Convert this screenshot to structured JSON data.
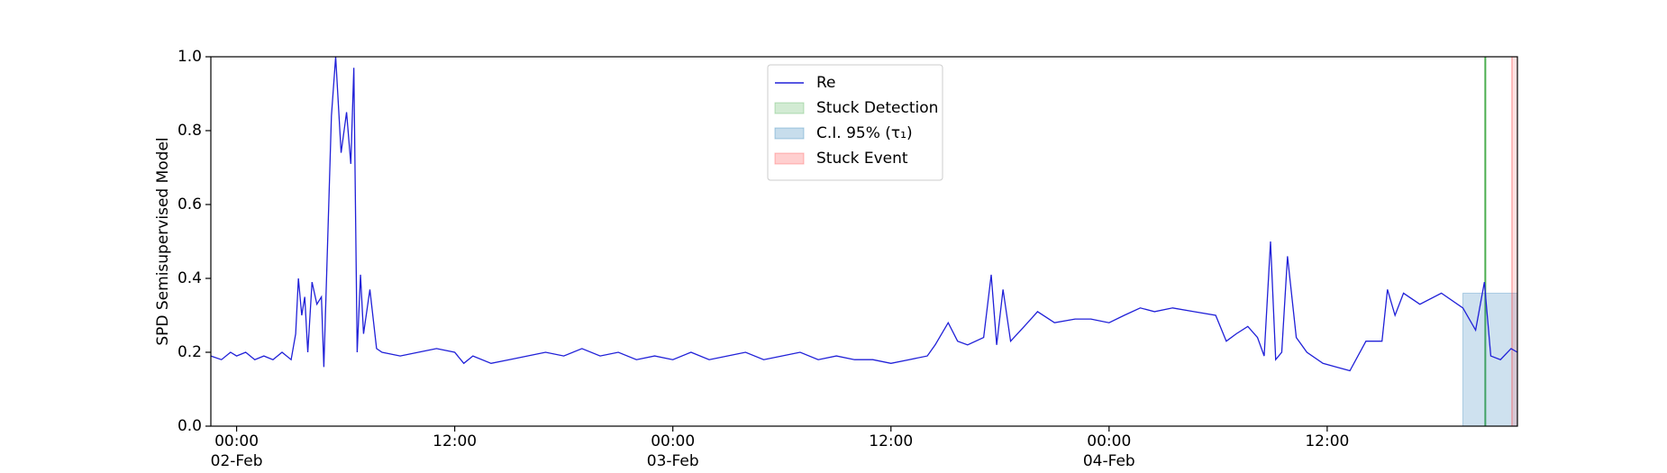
{
  "chart_data": {
    "type": "line",
    "ylabel": "SPD Semisupervised Model",
    "xlim": [
      "1900-02-01 22:35",
      "1900-02-04 22:28"
    ],
    "xticks": [
      {
        "value": "1900-02-02 00:00",
        "label": "00:00\n02-Feb\n1900"
      },
      {
        "value": "1900-02-02 12:00",
        "label": "12:00"
      },
      {
        "value": "1900-02-03 00:00",
        "label": "00:00\n03-Feb"
      },
      {
        "value": "1900-02-03 12:00",
        "label": "12:00"
      },
      {
        "value": "1900-02-04 00:00",
        "label": "00:00\n04-Feb"
      },
      {
        "value": "1900-02-04 12:00",
        "label": "12:00"
      }
    ],
    "ylim": [
      0,
      1
    ],
    "yticks": [
      {
        "value": 0,
        "label": "0.0"
      },
      0.2,
      0.4,
      0.6,
      0.8,
      {
        "value": 1,
        "label": "1.0"
      }
    ],
    "legend": "upper center",
    "series": [
      {
        "name": "Re",
        "color": "#2020d8",
        "x": [
          "1900-02-01 22:35",
          "1900-02-01 23:10",
          "1900-02-01 23:40",
          "1900-02-02 00:00",
          "1900-02-02 00:30",
          "1900-02-02 01:00",
          "1900-02-02 01:30",
          "1900-02-02 02:00",
          "1900-02-02 02:30",
          "1900-02-02 03:00",
          "1900-02-02 03:15",
          "1900-02-02 03:24",
          "1900-02-02 03:35",
          "1900-02-02 03:45",
          "1900-02-02 03:55",
          "1900-02-02 04:09",
          "1900-02-02 04:25",
          "1900-02-02 04:40",
          "1900-02-02 04:48",
          "1900-02-02 05:02",
          "1900-02-02 05:13",
          "1900-02-02 05:27",
          "1900-02-02 05:45",
          "1900-02-02 06:03",
          "1900-02-02 06:17",
          "1900-02-02 06:27",
          "1900-02-02 06:38",
          "1900-02-02 06:49",
          "1900-02-02 06:59",
          "1900-02-02 07:20",
          "1900-02-02 07:42",
          "1900-02-02 08:00",
          "1900-02-02 09:00",
          "1900-02-02 10:00",
          "1900-02-02 11:00",
          "1900-02-02 12:00",
          "1900-02-02 12:30",
          "1900-02-02 13:00",
          "1900-02-02 14:00",
          "1900-02-02 15:00",
          "1900-02-02 16:00",
          "1900-02-02 17:00",
          "1900-02-02 18:00",
          "1900-02-02 19:00",
          "1900-02-02 20:00",
          "1900-02-02 21:00",
          "1900-02-02 22:00",
          "1900-02-02 23:00",
          "1900-02-03 00:00",
          "1900-02-03 01:00",
          "1900-02-03 02:00",
          "1900-02-03 03:00",
          "1900-02-03 04:00",
          "1900-02-03 05:00",
          "1900-02-03 06:00",
          "1900-02-03 07:00",
          "1900-02-03 08:00",
          "1900-02-03 09:00",
          "1900-02-03 10:00",
          "1900-02-03 11:00",
          "1900-02-03 12:00",
          "1900-02-03 13:00",
          "1900-02-03 14:00",
          "1900-02-03 14:26",
          "1900-02-03 15:09",
          "1900-02-03 15:40",
          "1900-02-03 16:13",
          "1900-02-03 17:06",
          "1900-02-03 17:31",
          "1900-02-03 17:49",
          "1900-02-03 18:10",
          "1900-02-03 18:35",
          "1900-02-03 19:20",
          "1900-02-03 20:04",
          "1900-02-03 21:00",
          "1900-02-03 22:08",
          "1900-02-03 23:00",
          "1900-02-04 00:00",
          "1900-02-04 00:50",
          "1900-02-04 01:43",
          "1900-02-04 02:30",
          "1900-02-04 03:30",
          "1900-02-04 04:40",
          "1900-02-04 05:52",
          "1900-02-04 06:27",
          "1900-02-04 07:00",
          "1900-02-04 07:38",
          "1900-02-04 08:10",
          "1900-02-04 08:32",
          "1900-02-04 08:53",
          "1900-02-04 09:10",
          "1900-02-04 09:30",
          "1900-02-04 09:49",
          "1900-02-04 10:18",
          "1900-02-04 10:53",
          "1900-02-04 11:46",
          "1900-02-04 12:30",
          "1900-02-04 13:15",
          "1900-02-04 14:08",
          "1900-02-04 15:01",
          "1900-02-04 15:19",
          "1900-02-04 15:44",
          "1900-02-04 16:12",
          "1900-02-04 17:06",
          "1900-02-04 18:17",
          "1900-02-04 19:28",
          "1900-02-04 20:10",
          "1900-02-04 20:39",
          "1900-02-04 21:00",
          "1900-02-04 21:32",
          "1900-02-04 22:07",
          "1900-02-04 22:28"
        ],
        "values": [
          0.19,
          0.18,
          0.2,
          0.19,
          0.2,
          0.18,
          0.19,
          0.18,
          0.2,
          0.18,
          0.25,
          0.4,
          0.3,
          0.35,
          0.2,
          0.39,
          0.33,
          0.35,
          0.16,
          0.54,
          0.84,
          1.0,
          0.74,
          0.85,
          0.71,
          0.97,
          0.2,
          0.41,
          0.25,
          0.37,
          0.21,
          0.2,
          0.19,
          0.2,
          0.21,
          0.2,
          0.17,
          0.19,
          0.17,
          0.18,
          0.19,
          0.2,
          0.19,
          0.21,
          0.19,
          0.2,
          0.18,
          0.19,
          0.18,
          0.2,
          0.18,
          0.19,
          0.2,
          0.18,
          0.19,
          0.2,
          0.18,
          0.19,
          0.18,
          0.18,
          0.17,
          0.18,
          0.19,
          0.22,
          0.28,
          0.23,
          0.22,
          0.24,
          0.41,
          0.22,
          0.37,
          0.23,
          0.27,
          0.31,
          0.28,
          0.29,
          0.29,
          0.28,
          0.3,
          0.32,
          0.31,
          0.32,
          0.31,
          0.3,
          0.23,
          0.25,
          0.27,
          0.24,
          0.19,
          0.5,
          0.18,
          0.2,
          0.46,
          0.24,
          0.2,
          0.17,
          0.16,
          0.15,
          0.23,
          0.23,
          0.37,
          0.3,
          0.36,
          0.33,
          0.36,
          0.32,
          0.26,
          0.39,
          0.19,
          0.18,
          0.21,
          0.2
        ]
      }
    ],
    "spans": [
      {
        "name": "Stuck Detection",
        "kind": "vline",
        "x": "1900-02-04 20:42",
        "color": "#4caf50"
      },
      {
        "name": "C.I. 95% (τ₁)",
        "kind": "box",
        "x": [
          "1900-02-04 19:28",
          "1900-02-04 22:28"
        ],
        "y": [
          0,
          0.36
        ],
        "color": "#1f77b4"
      },
      {
        "name": "Stuck Event",
        "kind": "band",
        "x": [
          "1900-02-04 22:10",
          "1900-02-04 22:28"
        ],
        "color": "#ff4040"
      }
    ]
  }
}
